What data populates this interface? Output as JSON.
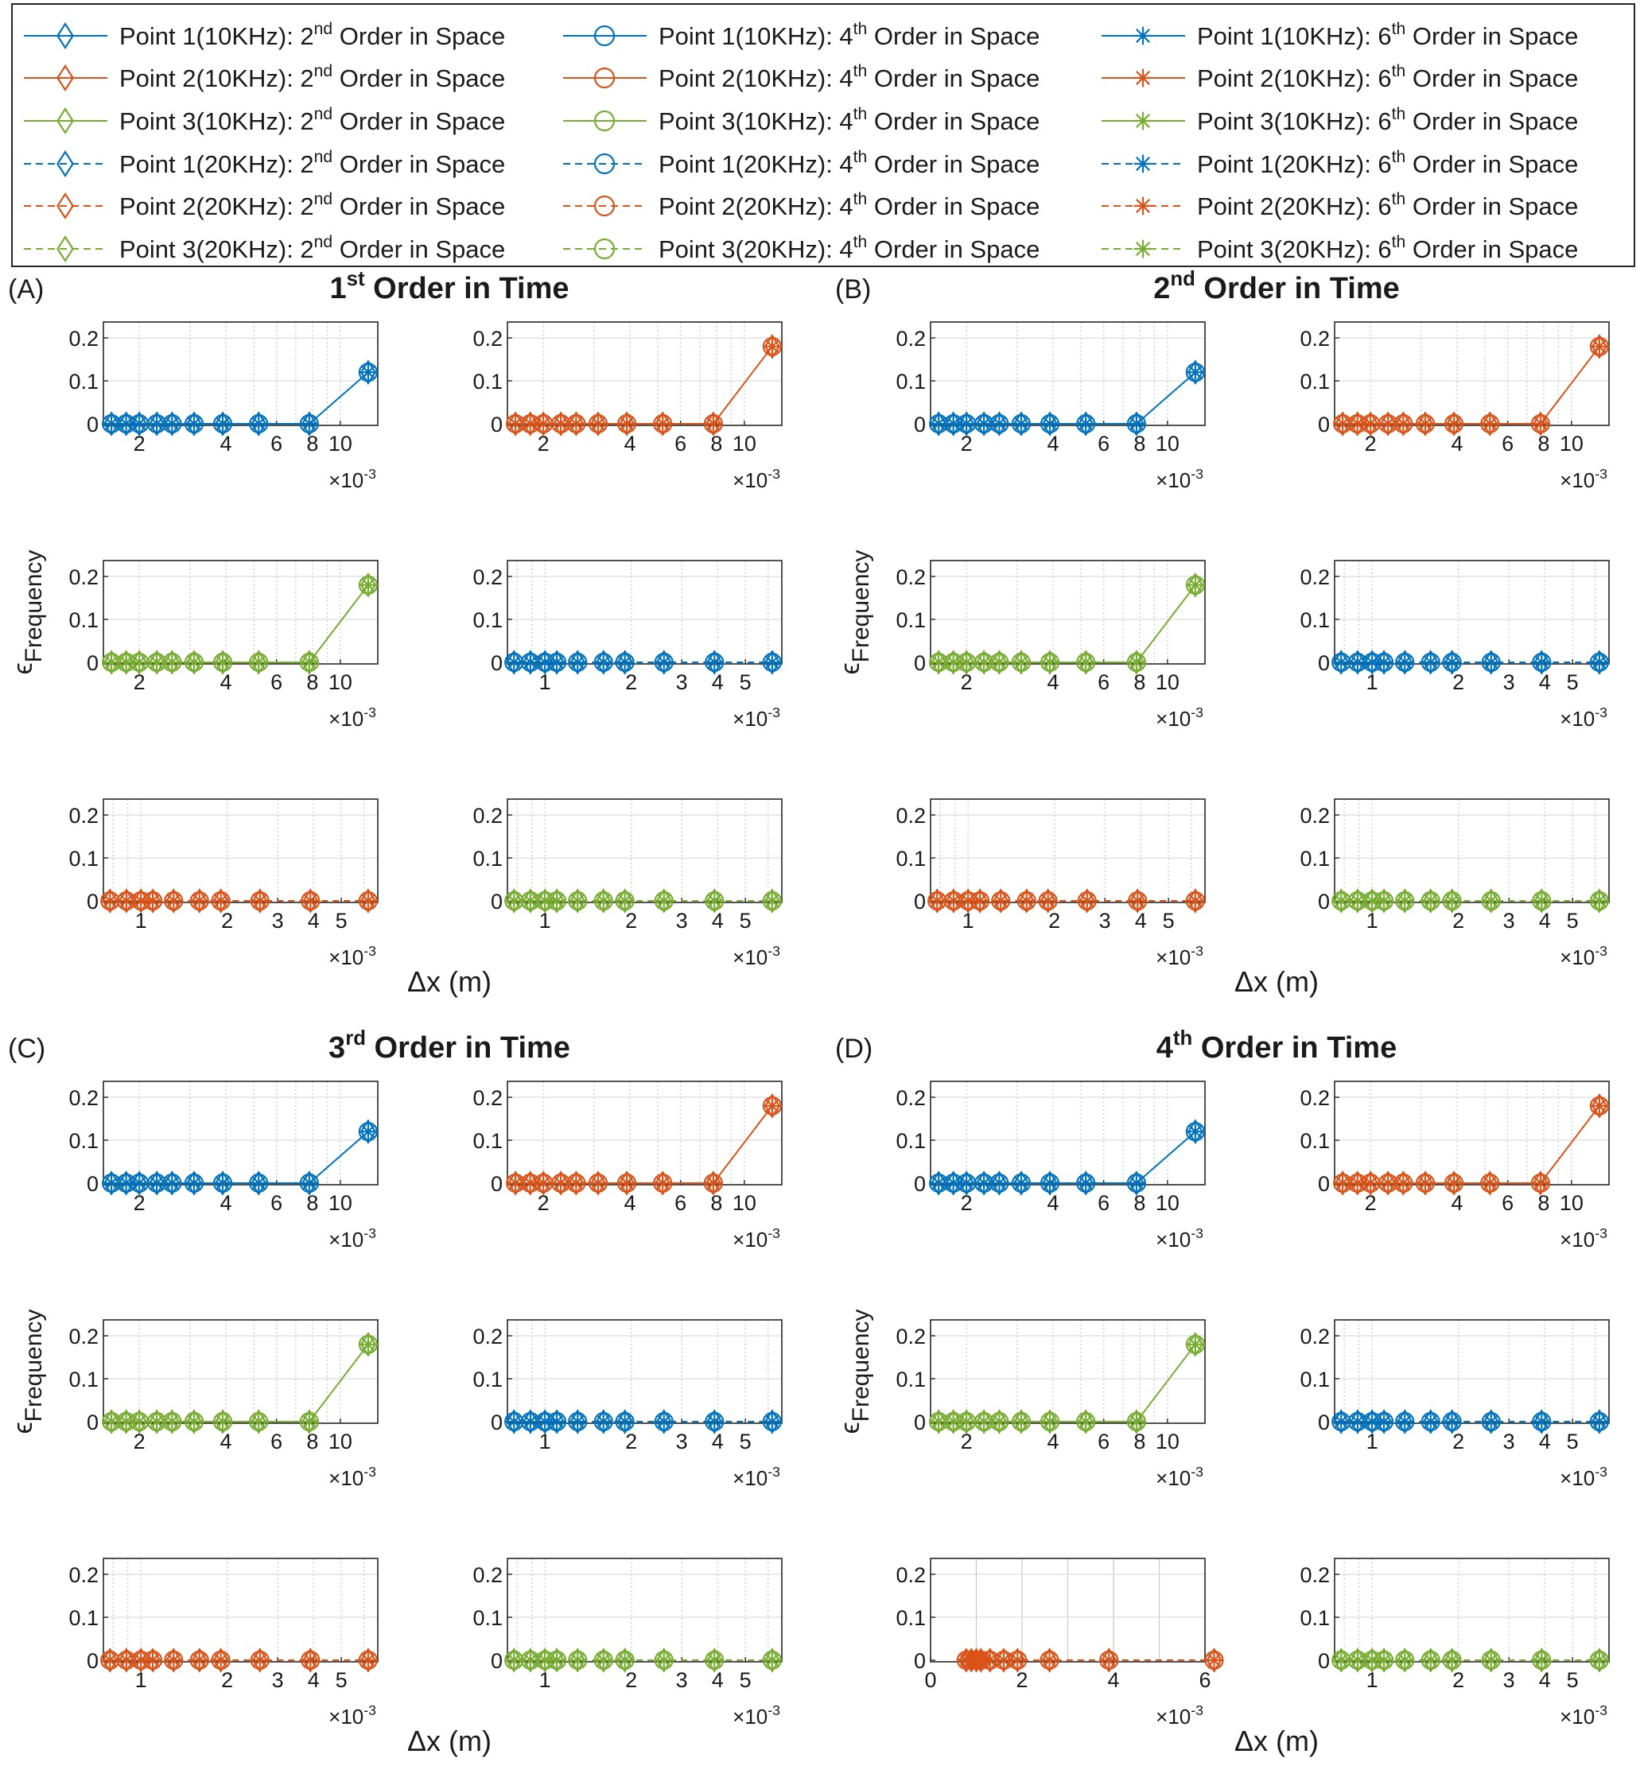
{
  "colors": {
    "p1": "#0072BD",
    "p2": "#D95319",
    "p3": "#77AC30",
    "axis": "#262626",
    "grid": "#c8c8c8"
  },
  "legend": {
    "entries": [
      {
        "prefix": "Point 1(10KHz): 2",
        "sup": "nd",
        "suffix": " Order in Space",
        "color": "p1",
        "dash": false,
        "marker": "diamond"
      },
      {
        "prefix": "Point 1(10KHz): 4",
        "sup": "th",
        "suffix": " Order in Space",
        "color": "p1",
        "dash": false,
        "marker": "circle"
      },
      {
        "prefix": "Point 1(10KHz): 6",
        "sup": "th",
        "suffix": " Order in Space",
        "color": "p1",
        "dash": false,
        "marker": "star"
      },
      {
        "prefix": "Point 2(10KHz): 2",
        "sup": "nd",
        "suffix": " Order in Space",
        "color": "p2",
        "dash": false,
        "marker": "diamond"
      },
      {
        "prefix": "Point 2(10KHz): 4",
        "sup": "th",
        "suffix": " Order in Space",
        "color": "p2",
        "dash": false,
        "marker": "circle"
      },
      {
        "prefix": "Point 2(10KHz): 6",
        "sup": "th",
        "suffix": " Order in Space",
        "color": "p2",
        "dash": false,
        "marker": "star"
      },
      {
        "prefix": "Point 3(10KHz): 2",
        "sup": "nd",
        "suffix": " Order in Space",
        "color": "p3",
        "dash": false,
        "marker": "diamond"
      },
      {
        "prefix": "Point 3(10KHz): 4",
        "sup": "th",
        "suffix": " Order in Space",
        "color": "p3",
        "dash": false,
        "marker": "circle"
      },
      {
        "prefix": "Point 3(10KHz): 6",
        "sup": "th",
        "suffix": " Order in Space",
        "color": "p3",
        "dash": false,
        "marker": "star"
      },
      {
        "prefix": "Point 1(20KHz): 2",
        "sup": "nd",
        "suffix": " Order in Space",
        "color": "p1",
        "dash": true,
        "marker": "diamond"
      },
      {
        "prefix": "Point 1(20KHz): 4",
        "sup": "th",
        "suffix": " Order in Space",
        "color": "p1",
        "dash": true,
        "marker": "circle"
      },
      {
        "prefix": "Point 1(20KHz): 6",
        "sup": "th",
        "suffix": " Order in Space",
        "color": "p1",
        "dash": true,
        "marker": "star"
      },
      {
        "prefix": "Point 2(20KHz): 2",
        "sup": "nd",
        "suffix": " Order in Space",
        "color": "p2",
        "dash": true,
        "marker": "diamond"
      },
      {
        "prefix": "Point 2(20KHz): 4",
        "sup": "th",
        "suffix": " Order in Space",
        "color": "p2",
        "dash": true,
        "marker": "circle"
      },
      {
        "prefix": "Point 2(20KHz): 6",
        "sup": "th",
        "suffix": " Order in Space",
        "color": "p2",
        "dash": true,
        "marker": "star"
      },
      {
        "prefix": "Point 3(20KHz): 2",
        "sup": "nd",
        "suffix": " Order in Space",
        "color": "p3",
        "dash": true,
        "marker": "diamond"
      },
      {
        "prefix": "Point 3(20KHz): 4",
        "sup": "th",
        "suffix": " Order in Space",
        "color": "p3",
        "dash": true,
        "marker": "circle"
      },
      {
        "prefix": "Point 3(20KHz): 6",
        "sup": "th",
        "suffix": " Order in Space",
        "color": "p3",
        "dash": true,
        "marker": "star"
      }
    ]
  },
  "panels": [
    {
      "letter": "(A)",
      "title_num": "1",
      "title_sup": "st",
      "title_rest": " Order in Time"
    },
    {
      "letter": "(B)",
      "title_num": "2",
      "title_sup": "nd",
      "title_rest": " Order in Time"
    },
    {
      "letter": "(C)",
      "title_num": "3",
      "title_sup": "rd",
      "title_rest": " Order in Time"
    },
    {
      "letter": "(D)",
      "title_num": "4",
      "title_sup": "th",
      "title_rest": " Order in Time"
    }
  ],
  "labels": {
    "ylabel_main": "ϵ",
    "ylabel_sub": "Frequency",
    "xlabel": "Δx (m)",
    "exponent_base": "×10",
    "exponent_power": "-3"
  },
  "chart_data": {
    "type": "line",
    "xscale": "log",
    "ylim": [
      0,
      0.2
    ],
    "yticks": [
      "0",
      "0.1",
      "0.2"
    ],
    "grid": true,
    "legend_placement": "top, outside, 3 columns",
    "x_unit_multiplier": "×10^-3",
    "datasets": {
      "coarse": {
        "x": [
          0.0016,
          0.0018,
          0.002,
          0.0023,
          0.0026,
          0.0031,
          0.0039,
          0.0052,
          0.0078,
          0.0125
        ],
        "xlim": [
          0.0015,
          0.0135
        ],
        "xticks": [
          2,
          4,
          6,
          8,
          10
        ]
      },
      "fine": {
        "x": [
          0.00078,
          0.00089,
          0.001,
          0.0011,
          0.0013,
          0.0016,
          0.0019,
          0.0026,
          0.0039,
          0.0062
        ],
        "xlim": [
          0.00074,
          0.0067
        ],
        "xticks": [
          1,
          2,
          3,
          4,
          5
        ]
      },
      "fine_linear": {
        "x": [
          0.00078,
          0.00089,
          0.001,
          0.0011,
          0.0013,
          0.0016,
          0.0019,
          0.0026,
          0.0039,
          0.0062
        ],
        "xlim": [
          0,
          0.006
        ],
        "xticks": [
          0,
          2,
          4,
          6
        ],
        "xscale": "linear"
      }
    },
    "series_values": {
      "p1_10k": [
        0,
        0,
        0,
        0,
        0,
        0,
        0,
        0,
        0,
        0.12
      ],
      "p2_10k": [
        0,
        0,
        0,
        0,
        0,
        0,
        0,
        0,
        0,
        0.18
      ],
      "p3_10k": [
        0,
        0,
        0,
        0,
        0,
        0,
        0,
        0,
        0,
        0.18
      ],
      "p1_20k": [
        0,
        0,
        0,
        0,
        0,
        0,
        0,
        0,
        0,
        0
      ],
      "p2_20k": [
        0,
        0,
        0,
        0,
        0,
        0,
        0,
        0,
        0,
        0
      ],
      "p3_20k": [
        0,
        0,
        0,
        0,
        0,
        0,
        0,
        0,
        0,
        0
      ]
    },
    "subplot_layout": [
      {
        "series": "p1_10k",
        "dataset": "coarse",
        "color": "p1",
        "dash": false
      },
      {
        "series": "p2_10k",
        "dataset": "coarse",
        "color": "p2",
        "dash": false
      },
      {
        "series": "p3_10k",
        "dataset": "coarse",
        "color": "p3",
        "dash": false
      },
      {
        "series": "p1_20k",
        "dataset": "fine",
        "color": "p1",
        "dash": true
      },
      {
        "series": "p2_20k",
        "dataset": "fine",
        "color": "p2",
        "dash": true
      },
      {
        "series": "p3_20k",
        "dataset": "fine",
        "color": "p3",
        "dash": true
      }
    ],
    "panel_D_override": {
      "index": 4,
      "dataset": "fine_linear"
    }
  }
}
